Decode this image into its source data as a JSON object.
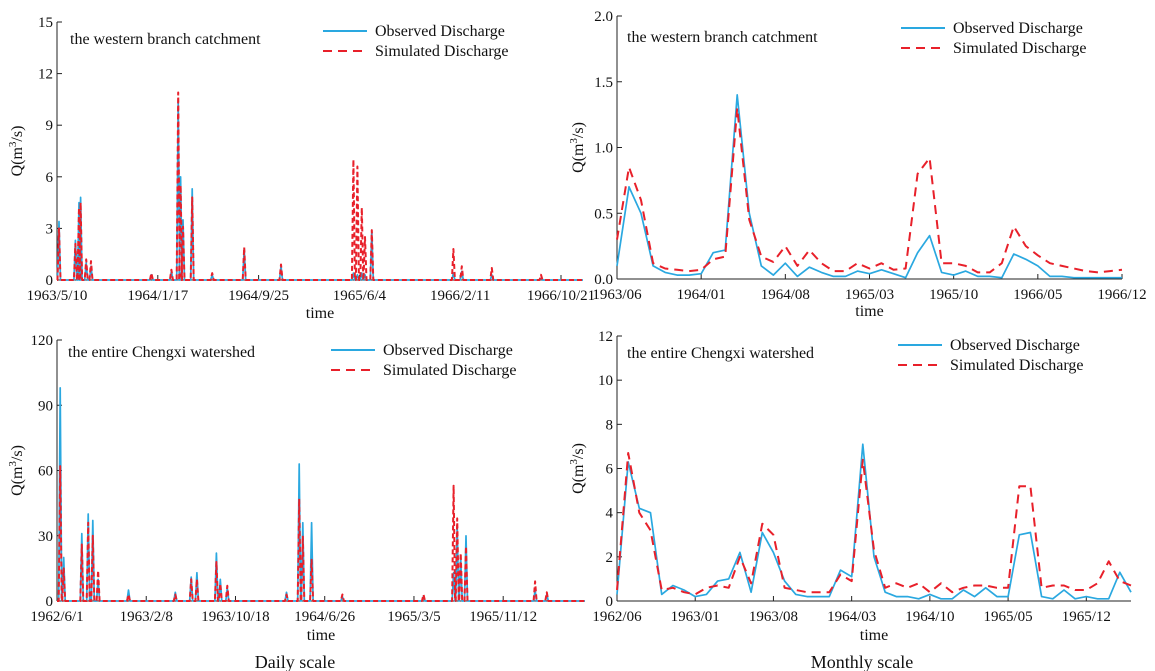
{
  "chart_data": [
    {
      "type": "line",
      "title": "the western branch catchment",
      "xlabel": "time",
      "ylabel": "Q(m^3/s)",
      "ylim": [
        0,
        15
      ],
      "yticks": [
        "0",
        "3",
        "6",
        "9",
        "12",
        "15"
      ],
      "xticks": [
        "1963/5/10",
        "1964/1/17",
        "1964/9/25",
        "1965/6/4",
        "1966/2/11",
        "1966/10/21"
      ],
      "x_start": "1963/5/10",
      "x_end": "1966/12/15",
      "legend_position": "top-right",
      "peaks": [
        {
          "date": "1963/5/15",
          "observed": 3.4,
          "simulated": 3.0
        },
        {
          "date": "1963/6/25",
          "observed": 2.3,
          "simulated": 2.1
        },
        {
          "date": "1963/7/4",
          "observed": 4.5,
          "simulated": 4.2
        },
        {
          "date": "1963/7/8",
          "observed": 4.8,
          "simulated": 4.5
        },
        {
          "date": "1963/7/22",
          "observed": 1.0,
          "simulated": 1.2
        },
        {
          "date": "1963/8/3",
          "observed": 0.8,
          "simulated": 1.1
        },
        {
          "date": "1964/1/1",
          "observed": 0.3,
          "simulated": 0.4
        },
        {
          "date": "1964/2/20",
          "observed": 0.5,
          "simulated": 0.6
        },
        {
          "date": "1964/3/8",
          "observed": 10.5,
          "simulated": 10.9
        },
        {
          "date": "1964/3/14",
          "observed": 6.0,
          "simulated": 5.5
        },
        {
          "date": "1964/3/20",
          "observed": 3.5,
          "simulated": 3.1
        },
        {
          "date": "1964/4/12",
          "observed": 5.3,
          "simulated": 4.8
        },
        {
          "date": "1964/6/1",
          "observed": 0.3,
          "simulated": 0.4
        },
        {
          "date": "1964/8/20",
          "observed": 1.8,
          "simulated": 1.9
        },
        {
          "date": "1964/11/20",
          "observed": 0.8,
          "simulated": 0.9
        },
        {
          "date": "1965/5/20",
          "observed": 0.4,
          "simulated": 7.0
        },
        {
          "date": "1965/5/30",
          "observed": 0.3,
          "simulated": 6.6
        },
        {
          "date": "1965/6/10",
          "observed": 0.4,
          "simulated": 4.2
        },
        {
          "date": "1965/6/18",
          "observed": 0.3,
          "simulated": 2.5
        },
        {
          "date": "1965/7/5",
          "observed": 2.8,
          "simulated": 2.9
        },
        {
          "date": "1966/1/25",
          "observed": 0.4,
          "simulated": 1.8
        },
        {
          "date": "1966/2/15",
          "observed": 0.5,
          "simulated": 0.8
        },
        {
          "date": "1966/5/1",
          "observed": 0.3,
          "simulated": 0.7
        },
        {
          "date": "1966/9/1",
          "observed": 0.1,
          "simulated": 0.3
        }
      ],
      "series": [
        {
          "name": "Observed Discharge",
          "color": "#2aa8e0",
          "dash": "solid"
        },
        {
          "name": "Simulated Discharge",
          "color": "#e8202a",
          "dash": "dashed"
        }
      ]
    },
    {
      "type": "line",
      "title": "the western branch catchment",
      "xlabel": "time",
      "ylabel": "Q(m^3/s)",
      "ylim": [
        0,
        2.0
      ],
      "yticks": [
        "0.0",
        "0.5",
        "1.0",
        "1.5",
        "2.0"
      ],
      "xticks": [
        "1963/06",
        "1964/01",
        "1964/08",
        "1965/03",
        "1965/10",
        "1966/05",
        "1966/12"
      ],
      "x": [
        "1963/06",
        "1963/07",
        "1963/08",
        "1963/09",
        "1963/10",
        "1963/11",
        "1963/12",
        "1964/01",
        "1964/02",
        "1964/03",
        "1964/04",
        "1964/05",
        "1964/06",
        "1964/07",
        "1964/08",
        "1964/09",
        "1964/10",
        "1964/11",
        "1964/12",
        "1965/01",
        "1965/02",
        "1965/03",
        "1965/04",
        "1965/05",
        "1965/06",
        "1965/07",
        "1965/08",
        "1965/09",
        "1965/10",
        "1965/11",
        "1965/12",
        "1966/01",
        "1966/02",
        "1966/03",
        "1966/04",
        "1966/05",
        "1966/06",
        "1966/07",
        "1966/08",
        "1966/09",
        "1966/10",
        "1966/11",
        "1966/12"
      ],
      "legend_position": "top-right",
      "series": [
        {
          "name": "Observed Discharge",
          "color": "#2aa8e0",
          "dash": "solid",
          "values": [
            0.1,
            0.7,
            0.5,
            0.1,
            0.05,
            0.03,
            0.03,
            0.04,
            0.2,
            0.22,
            1.4,
            0.5,
            0.1,
            0.03,
            0.12,
            0.02,
            0.09,
            0.05,
            0.02,
            0.02,
            0.06,
            0.04,
            0.07,
            0.04,
            0.01,
            0.2,
            0.33,
            0.05,
            0.03,
            0.06,
            0.02,
            0.02,
            0.01,
            0.19,
            0.15,
            0.1,
            0.02,
            0.02,
            0.01,
            0.01,
            0.01,
            0.01,
            0.01
          ]
        },
        {
          "name": "Simulated Discharge",
          "color": "#e8202a",
          "dash": "dashed",
          "values": [
            0.3,
            0.85,
            0.6,
            0.12,
            0.08,
            0.07,
            0.06,
            0.07,
            0.15,
            0.17,
            1.3,
            0.45,
            0.17,
            0.13,
            0.25,
            0.1,
            0.22,
            0.12,
            0.06,
            0.06,
            0.12,
            0.08,
            0.12,
            0.07,
            0.08,
            0.8,
            0.92,
            0.12,
            0.12,
            0.1,
            0.05,
            0.05,
            0.12,
            0.4,
            0.25,
            0.18,
            0.12,
            0.1,
            0.08,
            0.06,
            0.05,
            0.06,
            0.07
          ]
        }
      ]
    },
    {
      "type": "line",
      "title": "the entire Chengxi watershed",
      "xlabel": "time",
      "ylabel": "Q(m^3/s)",
      "ylim": [
        0,
        120
      ],
      "yticks": [
        "0",
        "30",
        "60",
        "90",
        "120"
      ],
      "xticks": [
        "1962/6/1",
        "1963/2/8",
        "1963/10/18",
        "1964/6/26",
        "1965/3/5",
        "1965/11/12"
      ],
      "x_start": "1962/6/1",
      "x_end": "1966/7/1",
      "legend_position": "top-right",
      "peaks": [
        {
          "date": "1962/6/10",
          "observed": 98,
          "simulated": 62
        },
        {
          "date": "1962/6/20",
          "observed": 20,
          "simulated": 15
        },
        {
          "date": "1962/8/10",
          "observed": 31,
          "simulated": 26
        },
        {
          "date": "1962/8/28",
          "observed": 40,
          "simulated": 36
        },
        {
          "date": "1962/9/10",
          "observed": 37,
          "simulated": 30
        },
        {
          "date": "1962/9/25",
          "observed": 10,
          "simulated": 14
        },
        {
          "date": "1962/12/20",
          "observed": 5,
          "simulated": 3
        },
        {
          "date": "1963/5/1",
          "observed": 4,
          "simulated": 3
        },
        {
          "date": "1963/6/15",
          "observed": 11,
          "simulated": 10
        },
        {
          "date": "1963/7/1",
          "observed": 13,
          "simulated": 10
        },
        {
          "date": "1963/8/25",
          "observed": 22,
          "simulated": 18
        },
        {
          "date": "1963/9/5",
          "observed": 10,
          "simulated": 8
        },
        {
          "date": "1963/9/25",
          "observed": 6,
          "simulated": 7
        },
        {
          "date": "1964/3/10",
          "observed": 4,
          "simulated": 3
        },
        {
          "date": "1964/4/15",
          "observed": 63,
          "simulated": 47
        },
        {
          "date": "1964/4/25",
          "observed": 36,
          "simulated": 30
        },
        {
          "date": "1964/5/20",
          "observed": 36,
          "simulated": 19
        },
        {
          "date": "1964/8/15",
          "observed": 2,
          "simulated": 3
        },
        {
          "date": "1965/4/1",
          "observed": 2,
          "simulated": 3
        },
        {
          "date": "1965/6/25",
          "observed": 13,
          "simulated": 53
        },
        {
          "date": "1965/7/5",
          "observed": 35,
          "simulated": 38
        },
        {
          "date": "1965/7/15",
          "observed": 20,
          "simulated": 22
        },
        {
          "date": "1965/7/30",
          "observed": 30,
          "simulated": 25
        },
        {
          "date": "1966/2/10",
          "observed": 5,
          "simulated": 9
        },
        {
          "date": "1966/3/15",
          "observed": 3,
          "simulated": 4
        }
      ],
      "series": [
        {
          "name": "Observed Discharge",
          "color": "#2aa8e0",
          "dash": "solid"
        },
        {
          "name": "Simulated Discharge",
          "color": "#e8202a",
          "dash": "dashed"
        }
      ]
    },
    {
      "type": "line",
      "title": "the entire Chengxi watershed",
      "xlabel": "time",
      "ylabel": "Q(m^3/s)",
      "ylim": [
        0,
        12
      ],
      "yticks": [
        "0",
        "2",
        "4",
        "6",
        "8",
        "10",
        "12"
      ],
      "xticks": [
        "1962/06",
        "1963/01",
        "1963/08",
        "1964/03",
        "1964/10",
        "1965/05",
        "1965/12"
      ],
      "x": [
        "1962/06",
        "1962/07",
        "1962/08",
        "1962/09",
        "1962/10",
        "1962/11",
        "1962/12",
        "1963/01",
        "1963/02",
        "1963/03",
        "1963/04",
        "1963/05",
        "1963/06",
        "1963/07",
        "1963/08",
        "1963/09",
        "1963/10",
        "1963/11",
        "1963/12",
        "1964/01",
        "1964/02",
        "1964/03",
        "1964/04",
        "1964/05",
        "1964/06",
        "1964/07",
        "1964/08",
        "1964/09",
        "1964/10",
        "1964/11",
        "1964/12",
        "1965/01",
        "1965/02",
        "1965/03",
        "1965/04",
        "1965/05",
        "1965/06",
        "1965/07",
        "1965/08",
        "1965/09",
        "1965/10",
        "1965/11",
        "1965/12",
        "1966/01",
        "1966/02",
        "1966/03",
        "1966/04"
      ],
      "legend_position": "top-right",
      "series": [
        {
          "name": "Observed Discharge",
          "color": "#2aa8e0",
          "dash": "solid",
          "values": [
            0.3,
            6.3,
            4.2,
            4.0,
            0.3,
            0.7,
            0.5,
            0.2,
            0.3,
            0.9,
            1.0,
            2.2,
            0.4,
            3.1,
            2.2,
            0.9,
            0.3,
            0.2,
            0.2,
            0.2,
            1.4,
            1.1,
            7.1,
            2.0,
            0.4,
            0.2,
            0.2,
            0.1,
            0.3,
            0.1,
            0.1,
            0.5,
            0.2,
            0.6,
            0.2,
            0.2,
            3.0,
            3.1,
            0.2,
            0.1,
            0.5,
            0.1,
            0.2,
            0.1,
            0.1,
            1.3,
            0.4
          ]
        },
        {
          "name": "Simulated Discharge",
          "color": "#e8202a",
          "dash": "dashed",
          "values": [
            0.5,
            6.7,
            4.0,
            3.2,
            0.5,
            0.6,
            0.4,
            0.3,
            0.6,
            0.7,
            0.6,
            2.0,
            0.8,
            3.5,
            3.0,
            0.6,
            0.5,
            0.4,
            0.4,
            0.4,
            1.2,
            0.9,
            6.4,
            2.3,
            0.6,
            0.8,
            0.6,
            0.8,
            0.4,
            0.8,
            0.4,
            0.6,
            0.7,
            0.7,
            0.6,
            0.6,
            5.2,
            5.2,
            0.6,
            0.7,
            0.7,
            0.5,
            0.5,
            0.8,
            1.8,
            0.9,
            0.7
          ]
        }
      ]
    }
  ],
  "captions": {
    "left": "Daily scale",
    "right": "Monthly scale"
  }
}
